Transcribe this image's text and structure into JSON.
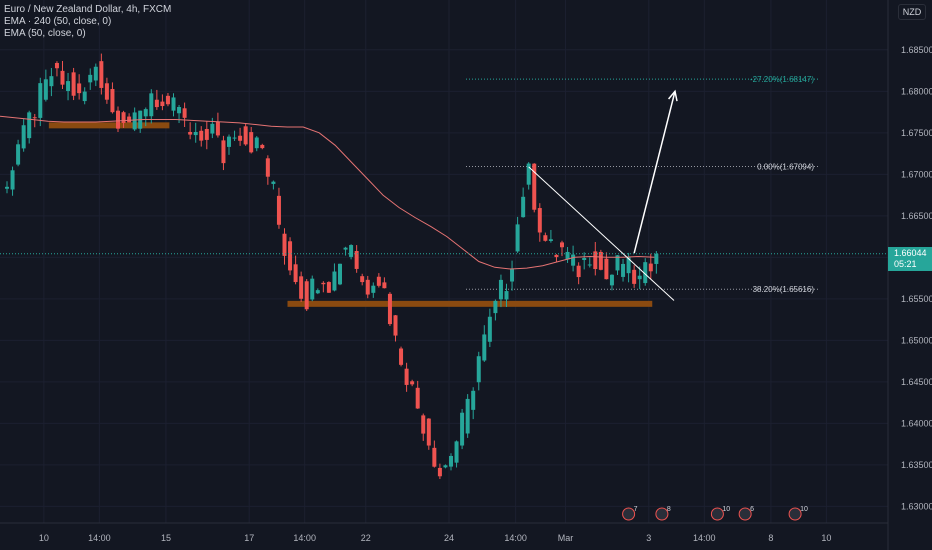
{
  "legend": {
    "title": "Euro / New Zealand Dollar, 4h, FXCM",
    "ema1": "EMA · 240 (50, close, 0)",
    "ema2": "EMA (50, close, 0)"
  },
  "currency": "NZD",
  "last_price": "1.66044",
  "countdown": "05:21",
  "colors": {
    "up": "#26a69a",
    "down": "#ef5350",
    "ema": "#e57373",
    "zone": "#8a4a10",
    "fib": "#26a69a",
    "background": "#131722"
  },
  "chart_data": {
    "type": "candlestick",
    "title": "Euro / New Zealand Dollar, 4h, FXCM",
    "y_ticks": [
      "1.68500",
      "1.68000",
      "1.67500",
      "1.67000",
      "1.66500",
      "1.66000",
      "1.65500",
      "1.65000",
      "1.64500",
      "1.64000",
      "1.63500",
      "1.63000"
    ],
    "x_ticks": [
      "10",
      "14:00",
      "15",
      "17",
      "14:00",
      "22",
      "24",
      "14:00",
      "Mar",
      "3",
      "14:00",
      "8",
      "10"
    ],
    "ylim": [
      1.628,
      1.691
    ],
    "trend": [
      [
        1.667,
        1.6695
      ],
      [
        1.6695,
        1.671
      ],
      [
        1.671,
        1.6735
      ],
      [
        1.6735,
        1.6745
      ],
      [
        1.6745,
        1.6765
      ],
      [
        1.6765,
        1.6778
      ],
      [
        1.6778,
        1.6795
      ],
      [
        1.6795,
        1.6805
      ],
      [
        1.6805,
        1.682
      ],
      [
        1.682,
        1.6815
      ],
      [
        1.6815,
        1.681
      ],
      [
        1.681,
        1.6808
      ],
      [
        1.6808,
        1.68
      ],
      [
        1.68,
        1.679
      ],
      [
        1.679,
        1.6798
      ],
      [
        1.6798,
        1.6815
      ],
      [
        1.6815,
        1.6832
      ],
      [
        1.6832,
        1.6815
      ],
      [
        1.6815,
        1.6795
      ],
      [
        1.6795,
        1.6775
      ],
      [
        1.6775,
        1.677
      ],
      [
        1.677,
        1.6772
      ],
      [
        1.6772,
        1.6765
      ],
      [
        1.6765,
        1.676
      ],
      [
        1.676,
        1.677
      ],
      [
        1.677,
        1.6785
      ],
      [
        1.6785,
        1.68
      ],
      [
        1.68,
        1.679
      ],
      [
        1.679,
        1.678
      ],
      [
        1.678,
        1.677
      ],
      [
        1.677,
        1.678
      ],
      [
        1.678,
        1.6782
      ],
      [
        1.6782,
        1.676
      ],
      [
        1.676,
        1.6745
      ],
      [
        1.6745,
        1.6738
      ],
      [
        1.6738,
        1.6742
      ],
      [
        1.6742,
        1.675
      ],
      [
        1.675,
        1.6755
      ],
      [
        1.6755,
        1.6738
      ],
      [
        1.6738,
        1.672
      ],
      [
        1.672,
        1.6745
      ],
      [
        1.6745,
        1.6755
      ],
      [
        1.6755,
        1.6752
      ],
      [
        1.6752,
        1.6742
      ],
      [
        1.6742,
        1.6738
      ],
      [
        1.6738,
        1.6735
      ],
      [
        1.6735,
        1.673
      ],
      [
        1.673,
        1.67
      ],
      [
        1.67,
        1.668
      ],
      [
        1.668,
        1.664
      ],
      [
        1.664,
        1.661
      ],
      [
        1.661,
        1.659
      ],
      [
        1.659,
        1.658
      ],
      [
        1.658,
        1.656
      ],
      [
        1.656,
        1.655
      ],
      [
        1.655,
        1.6565
      ],
      [
        1.6565,
        1.6575
      ],
      [
        1.6575,
        1.658
      ],
      [
        1.658,
        1.657
      ],
      [
        1.657,
        1.658
      ],
      [
        1.658,
        1.66
      ],
      [
        1.66,
        1.6615
      ],
      [
        1.6615,
        1.662
      ],
      [
        1.662,
        1.659
      ],
      [
        1.659,
        1.657
      ],
      [
        1.657,
        1.6565
      ],
      [
        1.6565,
        1.658
      ],
      [
        1.658,
        1.6575
      ],
      [
        1.6575,
        1.656
      ],
      [
        1.656,
        1.653
      ],
      [
        1.653,
        1.65
      ],
      [
        1.65,
        1.648
      ],
      [
        1.648,
        1.646
      ],
      [
        1.646,
        1.644
      ],
      [
        1.644,
        1.642
      ],
      [
        1.642,
        1.64
      ],
      [
        1.64,
        1.638
      ],
      [
        1.638,
        1.636
      ],
      [
        1.636,
        1.634
      ],
      [
        1.634,
        1.635
      ],
      [
        1.635,
        1.6365
      ],
      [
        1.6365,
        1.638
      ],
      [
        1.638,
        1.64
      ],
      [
        1.64,
        1.642
      ],
      [
        1.642,
        1.645
      ],
      [
        1.645,
        1.648
      ],
      [
        1.648,
        1.65
      ],
      [
        1.65,
        1.652
      ],
      [
        1.652,
        1.654
      ],
      [
        1.654,
        1.656
      ],
      [
        1.656,
        1.657
      ],
      [
        1.657,
        1.66
      ],
      [
        1.66,
        1.664
      ],
      [
        1.664,
        1.668
      ],
      [
        1.668,
        1.67
      ],
      [
        1.67,
        1.667
      ],
      [
        1.667,
        1.664
      ],
      [
        1.664,
        1.662
      ],
      [
        1.662,
        1.661
      ],
      [
        1.661,
        1.6605
      ],
      [
        1.6605,
        1.661
      ],
      [
        1.661,
        1.66
      ],
      [
        1.66,
        1.659
      ],
      [
        1.659,
        1.6585
      ],
      [
        1.6585,
        1.6595
      ],
      [
        1.6595,
        1.6605
      ],
      [
        1.6605,
        1.66
      ],
      [
        1.66,
        1.6585
      ],
      [
        1.6585,
        1.6575
      ],
      [
        1.6575,
        1.658
      ],
      [
        1.658,
        1.659
      ],
      [
        1.659,
        1.6595
      ],
      [
        1.6595,
        1.6585
      ],
      [
        1.6585,
        1.6575
      ],
      [
        1.6575,
        1.657
      ],
      [
        1.657,
        1.658
      ],
      [
        1.658,
        1.6595
      ],
      [
        1.6595,
        1.6605
      ]
    ],
    "ema": [
      1.677,
      1.6768,
      1.6766,
      1.6764,
      1.6763,
      1.6763,
      1.6763,
      1.6764,
      1.6765,
      1.6766,
      1.6766,
      1.6766,
      1.6765,
      1.6764,
      1.6763,
      1.6762,
      1.676,
      1.6758,
      1.6757,
      1.6757,
      1.675,
      1.6735,
      1.6715,
      1.6695,
      1.6675,
      1.666,
      1.6648,
      1.6637,
      1.6625,
      1.661,
      1.6595,
      1.6588,
      1.6586,
      1.6587,
      1.659,
      1.6595,
      1.66,
      1.6601,
      1.66,
      1.66,
      1.6601,
      1.66
    ],
    "zones": [
      {
        "from_index": 7,
        "to_index": 28,
        "y": 1.6759
      },
      {
        "from_index": 50,
        "to_index": 115,
        "y": 1.6544
      }
    ],
    "fib_levels": [
      {
        "label": "-27.20%(1.68147)",
        "value": 1.68147
      },
      {
        "label": "0.00%(1.67094)",
        "value": 1.67094
      },
      {
        "label": "38.20%(1.65616)",
        "value": 1.65616
      }
    ],
    "triangle": {
      "start_index": 94,
      "start_value": 1.6709,
      "end_index": 120,
      "end_value": 1.6548
    },
    "projection": {
      "start_index": 113,
      "start_value": 1.6605,
      "end_index": 120,
      "end_value": 1.68
    },
    "event_markers": [
      {
        "index": 112,
        "label": "7"
      },
      {
        "index": 118,
        "label": "8"
      },
      {
        "index": 128,
        "label": "10"
      },
      {
        "index": 133,
        "label": "6"
      },
      {
        "index": 142,
        "label": "10"
      }
    ],
    "last_value": 1.66044
  }
}
